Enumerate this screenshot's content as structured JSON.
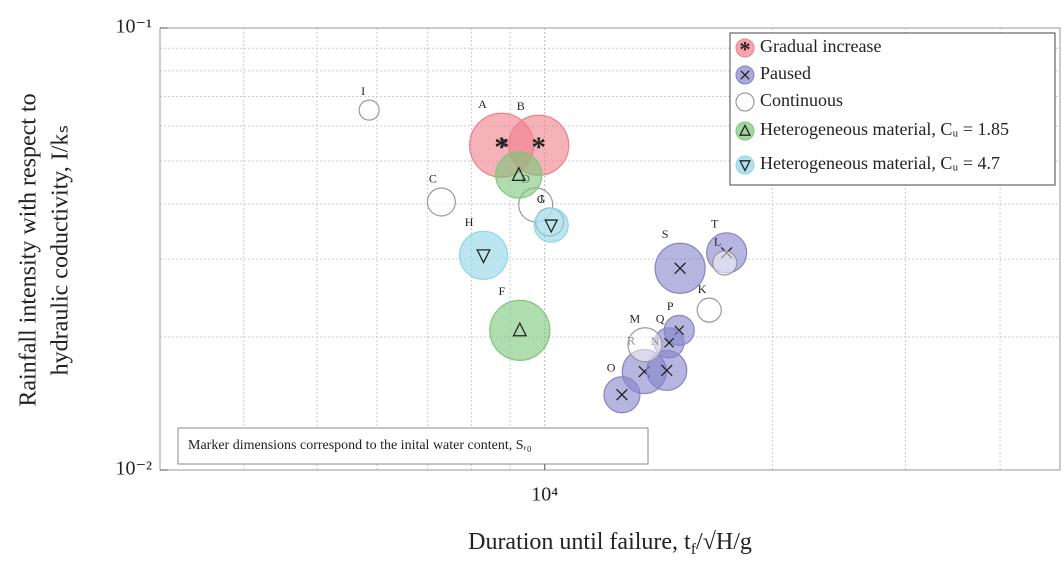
{
  "chart_data": {
    "type": "scatter",
    "xlabel": [
      "Duration until failure, t",
      "f",
      "/√H/g"
    ],
    "ylabel": [
      "Rainfall intensity with respect to",
      "hydraulic coductivity, I/kₛ"
    ],
    "note": "Marker dimensions correspond to the inital water content, Sᵣ₀",
    "xscale": "log",
    "yscale": "log",
    "xlim": [
      3100,
      48000
    ],
    "ylim": [
      0.01,
      0.1
    ],
    "xticks": [
      {
        "value": 10000,
        "label": "10⁴"
      }
    ],
    "yticks": [
      {
        "value": 0.01,
        "label": "10⁻²"
      },
      {
        "value": 0.1,
        "label": "10⁻¹"
      }
    ],
    "xminorticks": [
      4000,
      5000,
      6000,
      7000,
      8000,
      9000,
      20000,
      30000,
      40000
    ],
    "yminorticks": [
      0.02,
      0.03,
      0.04,
      0.05,
      0.06,
      0.07,
      0.08,
      0.09
    ],
    "grid": true,
    "legend": "upper right",
    "series": [
      {
        "name": "Gradual increase",
        "color": "#f07f8a",
        "marker": "*",
        "labels": [
          "A",
          "B"
        ],
        "x": [
          8770,
          9820
        ],
        "values": [
          0.0543,
          0.0543
        ],
        "sizes": [
          32,
          30
        ]
      },
      {
        "name": "Paused",
        "color": "#8683c9",
        "marker": "x",
        "labels": [
          "S",
          "T",
          "P",
          "Q",
          "R",
          "N",
          "O"
        ],
        "x": [
          15100,
          17400,
          15060,
          14600,
          13540,
          14500,
          12650
        ],
        "values": [
          0.0286,
          0.031,
          0.0207,
          0.0194,
          0.0167,
          0.0168,
          0.0148
        ],
        "sizes": [
          25,
          20,
          15,
          15,
          22,
          20,
          18
        ]
      },
      {
        "name": "Continuous",
        "color": "#ffffff",
        "marker": "o",
        "labels": [
          "I",
          "C",
          "D",
          "J",
          "L",
          "K",
          "M"
        ],
        "x": [
          5860,
          7300,
          9730,
          10150,
          17300,
          16500,
          13570
        ],
        "values": [
          0.0652,
          0.0404,
          0.0398,
          0.0364,
          0.0294,
          0.023,
          0.0192
        ],
        "sizes": [
          10,
          14,
          17,
          14,
          12,
          12,
          17
        ]
      },
      {
        "name": "Heterogeneous material, Cᵤ = 1.85",
        "color": "#7cc679",
        "marker": "triangle-up",
        "labels": [
          "E",
          "F"
        ],
        "x": [
          9240,
          9270
        ],
        "values": [
          0.0465,
          0.0207
        ],
        "sizes": [
          23,
          30
        ]
      },
      {
        "name": "Heterogeneous material, Cᵤ = 4.7",
        "color": "#8ed6e6",
        "marker": "triangle-down",
        "labels": [
          "G",
          "H"
        ],
        "x": [
          10200,
          8300
        ],
        "values": [
          0.0358,
          0.0306
        ],
        "sizes": [
          17,
          24
        ]
      }
    ]
  }
}
